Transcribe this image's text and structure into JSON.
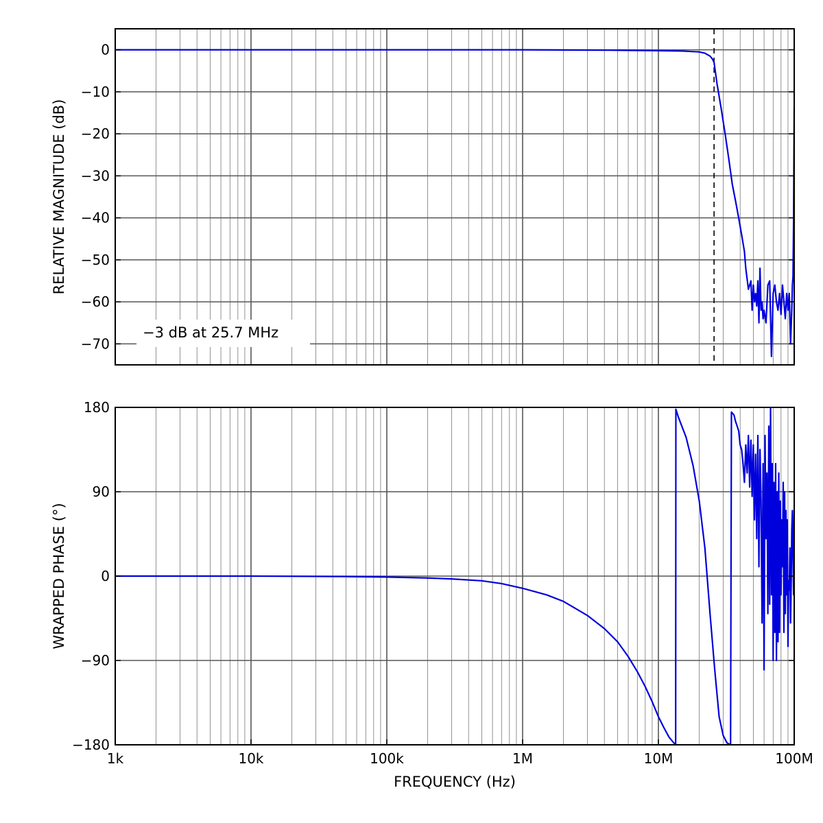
{
  "chart_data": [
    {
      "type": "line",
      "x_scale": "log",
      "xlim": [
        1000,
        100000000
      ],
      "ylim": [
        -75,
        5
      ],
      "ylabel": "RELATIVE MAGNITUDE (dB)",
      "yticks": [
        0,
        -10,
        -20,
        -30,
        -40,
        -50,
        -60,
        -70
      ],
      "ytick_labels": [
        "0",
        "−10",
        "−20",
        "−30",
        "−40",
        "−50",
        "−60",
        "−70"
      ],
      "grid": true,
      "color": "#0000dd",
      "annotation": {
        "text": "−3 dB at 25.7 MHz",
        "placement": "bottom-left"
      },
      "marker_line": {
        "x": 25700000,
        "style": "dashed"
      },
      "series": [
        {
          "x": [
            1000,
            10000,
            100000,
            1000000,
            5000000,
            10000000,
            15000000,
            20000000,
            22000000,
            24000000,
            25000000,
            25700000,
            27000000,
            29000000,
            31000000,
            33000000,
            35000000,
            37000000,
            39000000,
            41000000,
            43000000,
            44000000,
            46000000,
            48000000,
            49000000,
            50000000,
            51000000,
            52000000,
            53000000,
            54000000,
            55000000,
            56000000,
            57000000,
            58000000,
            59000000,
            60000000,
            62000000,
            64000000,
            66000000,
            68000000,
            70000000,
            71000000,
            72000000,
            74000000,
            76000000,
            78000000,
            80000000,
            82000000,
            84000000,
            86000000,
            88000000,
            90000000,
            92000000,
            94000000,
            96000000,
            97000000,
            98000000,
            99000000,
            100000000
          ],
          "y": [
            0,
            0,
            0,
            0,
            -0.1,
            -0.2,
            -0.3,
            -0.5,
            -0.8,
            -1.5,
            -2.2,
            -3,
            -8,
            -14,
            -20,
            -26,
            -32,
            -36,
            -40,
            -44,
            -48,
            -52,
            -57,
            -55,
            -62,
            -56,
            -60,
            -58,
            -61,
            -55,
            -65,
            -52,
            -62,
            -60,
            -64,
            -62,
            -65,
            -56,
            -55,
            -73,
            -58,
            -57,
            -56,
            -60,
            -62,
            -58,
            -63,
            -56,
            -60,
            -64,
            -58,
            -62,
            -58,
            -70,
            -62,
            -56,
            -54,
            -40,
            -14
          ]
        }
      ]
    },
    {
      "type": "line",
      "x_scale": "log",
      "xlim": [
        1000,
        100000000
      ],
      "ylim": [
        -180,
        180
      ],
      "xlabel": "FREQUENCY (Hz)",
      "ylabel": "WRAPPED PHASE (°)",
      "xticks": [
        1000,
        10000,
        100000,
        1000000,
        10000000,
        100000000
      ],
      "xtick_labels": [
        "1k",
        "10k",
        "100k",
        "1M",
        "10M",
        "100M"
      ],
      "yticks": [
        180,
        90,
        0,
        -90,
        -180
      ],
      "ytick_labels": [
        "180",
        "90",
        "0",
        "−90",
        "−180"
      ],
      "grid": true,
      "color": "#0000dd",
      "series": [
        {
          "x": [
            1000,
            10000,
            50000,
            100000,
            200000,
            300000,
            500000,
            700000,
            1000000,
            1500000,
            2000000,
            3000000,
            4000000,
            5000000,
            6000000,
            7000000,
            8000000,
            9000000,
            10000000,
            11000000,
            12000000,
            13000000,
            13400000,
            13450000,
            14000000,
            16000000,
            18000000,
            20000000,
            22000000,
            24000000,
            26000000,
            28000000,
            30000000,
            32000000,
            34000000,
            34500000,
            35000000,
            36000000,
            37000000,
            38000000,
            39000000,
            40000000,
            41000000,
            42000000,
            43000000,
            44000000,
            45000000,
            46000000,
            47000000,
            48000000,
            49000000,
            50000000,
            51000000,
            52000000,
            53000000,
            54000000,
            55000000,
            56000000,
            57000000,
            58000000,
            59000000,
            60000000,
            61000000,
            62000000,
            63000000,
            64000000,
            65000000,
            66000000,
            67000000,
            68000000,
            69000000,
            70000000,
            71000000,
            72000000,
            73000000,
            74000000,
            75000000,
            76000000,
            77000000,
            78000000,
            79000000,
            80000000,
            81000000,
            82000000,
            83000000,
            84000000,
            85000000,
            86000000,
            87000000,
            88000000,
            89000000,
            90000000,
            91000000,
            92000000,
            93000000,
            94000000,
            95000000,
            96000000,
            97000000,
            98000000,
            99000000,
            100000000
          ],
          "y": [
            0,
            0,
            -0.5,
            -1,
            -2,
            -3,
            -5,
            -8,
            -13,
            -20,
            -27,
            -42,
            -56,
            -70,
            -86,
            -102,
            -118,
            -134,
            -150,
            -162,
            -172,
            -178,
            -180,
            178,
            170,
            148,
            118,
            80,
            30,
            -40,
            -100,
            -150,
            -170,
            -178,
            -180,
            175,
            174,
            172,
            165,
            160,
            155,
            140,
            135,
            120,
            100,
            140,
            110,
            150,
            95,
            145,
            85,
            140,
            60,
            130,
            40,
            150,
            10,
            135,
            80,
            -50,
            120,
            -100,
            150,
            40,
            110,
            -40,
            160,
            -30,
            180,
            -20,
            120,
            -90,
            100,
            -60,
            120,
            -90,
            90,
            -70,
            110,
            -60,
            80,
            -20,
            60,
            10,
            100,
            -60,
            90,
            -40,
            70,
            -20,
            60,
            -75,
            -5,
            -15,
            30,
            -50,
            -10,
            50,
            70,
            20,
            -20,
            70
          ]
        }
      ]
    }
  ]
}
